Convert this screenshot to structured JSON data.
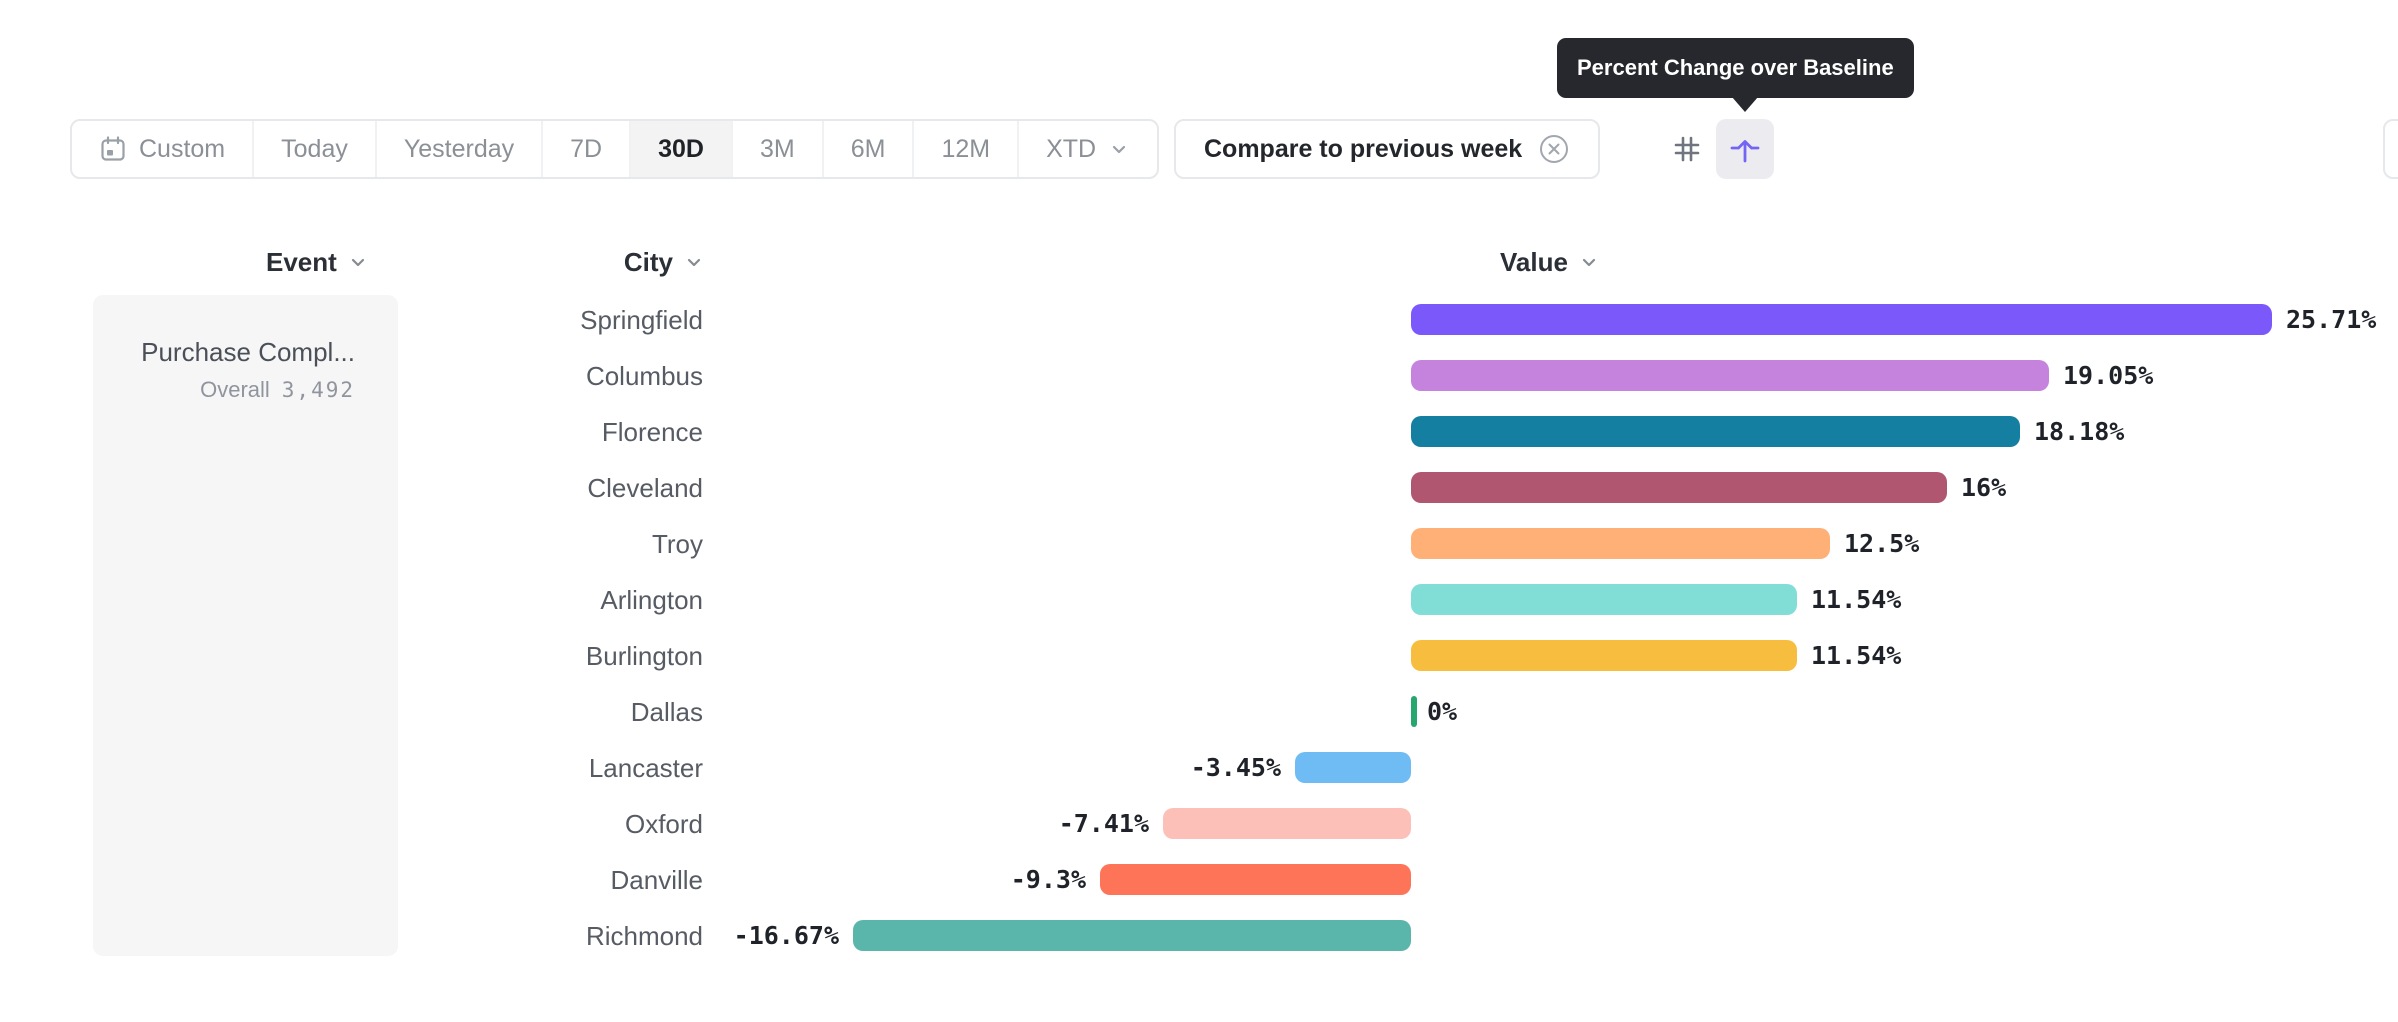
{
  "tooltip": {
    "text": "Percent Change over Baseline"
  },
  "toolbar": {
    "date_segments": [
      "Custom",
      "Today",
      "Yesterday",
      "7D",
      "30D",
      "3M",
      "6M",
      "12M",
      "XTD"
    ],
    "selected_segment": "30D",
    "dropdown_segment": "XTD",
    "compare_pill_label": "Compare to previous week",
    "icons": {
      "calendar": "calendar-icon",
      "remove_compare": "circle-x-icon",
      "grid": "hash-grid-icon",
      "percent_change_over_baseline": "arrow-up-baseline-icon",
      "dropdown": "chevron-down-icon"
    }
  },
  "table_headers": {
    "event": "Event",
    "city": "City",
    "value": "Value"
  },
  "event_card": {
    "title": "Purchase Compl...",
    "overall_label": "Overall",
    "overall_value": "3,492"
  },
  "chart_data": {
    "type": "bar",
    "orientation": "horizontal",
    "title": "Percent Change over Baseline",
    "series_name": "Value",
    "unit": "%",
    "baseline": 0,
    "categories": [
      "Springfield",
      "Columbus",
      "Florence",
      "Cleveland",
      "Troy",
      "Arlington",
      "Burlington",
      "Dallas",
      "Lancaster",
      "Oxford",
      "Danville",
      "Richmond"
    ],
    "values": [
      25.71,
      19.05,
      18.18,
      16,
      12.5,
      11.54,
      11.54,
      0,
      -3.45,
      -7.41,
      -9.3,
      -16.67
    ],
    "value_labels": [
      "25.71%",
      "19.05%",
      "18.18%",
      "16%",
      "12.5%",
      "11.54%",
      "11.54%",
      "0%",
      "-3.45%",
      "-7.41%",
      "-9.3%",
      "-16.67%"
    ],
    "bar_colors": [
      "#7a58fa",
      "#c583de",
      "#147fa0",
      "#b05671",
      "#ffb077",
      "#81ded7",
      "#f7bd3f",
      "#27a670",
      "#6fbbf3",
      "#fcc0b9",
      "#fe7459",
      "#5ab5ab"
    ],
    "zero_tick_color": "#27a670"
  },
  "colors": {
    "accent_purple": "#7365f3",
    "tooltip_bg": "#26282d",
    "card_bg": "#f6f6f7",
    "selected_segment_bg": "#f3f3f4",
    "pill_border": "#e6e8eb"
  }
}
